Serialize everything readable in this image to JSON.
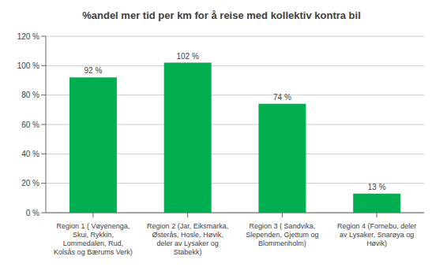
{
  "chart_data": {
    "type": "bar",
    "title": "%andel mer tid per km for å reise med kollektiv kontra bil",
    "categories": [
      "Region 1 ( Vøyenenga,\nSkui, Rykkin,\nLommedalen, Rud,\nKolsås og Bærums Verk)",
      "Region 2 (Jar, Eiksmarka,\nØsterås, Hosle, Høvik,\ndeler av Lysaker og\nStabekk)",
      "Region 3 ( Sandvika,\nSlependen, Gjettum og\nBlommenholm)",
      "Region 4 (Fornebu, deler\nav Lysaker, Snarøya og\nHøvik)"
    ],
    "values": [
      92,
      102,
      74,
      13
    ],
    "value_labels": [
      "92 %",
      "102 %",
      "74 %",
      "13 %"
    ],
    "data_labels": true,
    "color": "#00b050",
    "ylim": [
      0,
      120
    ],
    "yticks": [
      {
        "value": 0,
        "label": "0 %"
      },
      {
        "value": 20,
        "label": "20 %"
      },
      {
        "value": 40,
        "label": "40 %"
      },
      {
        "value": 60,
        "label": "60 %"
      },
      {
        "value": 80,
        "label": "80 %"
      },
      {
        "value": 100,
        "label": "100 %"
      },
      {
        "value": 120,
        "label": "120 %"
      }
    ],
    "grid": true
  }
}
